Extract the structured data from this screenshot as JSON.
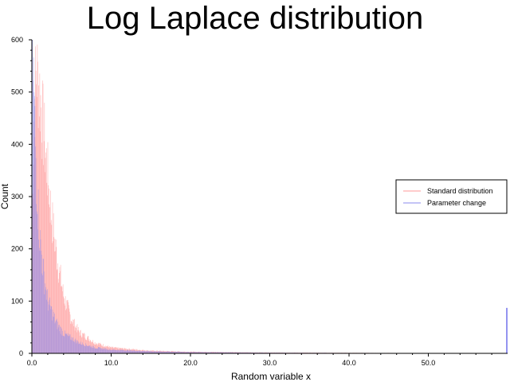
{
  "chart_data": {
    "type": "bar",
    "title": "Log Laplace distribution",
    "xlabel": "Random variable x",
    "ylabel": "Count",
    "xlim": [
      0,
      60
    ],
    "ylim": [
      0,
      600
    ],
    "grid": false,
    "legend_position": "right",
    "xticks": [
      "0.0",
      "10.0",
      "20.0",
      "30.0",
      "40.0",
      "50.0"
    ],
    "yticks": [
      "0",
      "100",
      "200",
      "300",
      "400",
      "500",
      "600"
    ],
    "bin_width": 0.06,
    "series": [
      {
        "name": "Standard distribution",
        "color": "#ff9a9a",
        "curve": [
          [
            0,
            220
          ],
          [
            0.3,
            480
          ],
          [
            0.6,
            540
          ],
          [
            1.0,
            500
          ],
          [
            1.5,
            420
          ],
          [
            2.0,
            340
          ],
          [
            2.5,
            260
          ],
          [
            3.0,
            200
          ],
          [
            4.0,
            110
          ],
          [
            5.0,
            65
          ],
          [
            6.0,
            40
          ],
          [
            8.0,
            20
          ],
          [
            10.0,
            11
          ],
          [
            15.0,
            5
          ],
          [
            20.0,
            3
          ],
          [
            30.0,
            1.5
          ],
          [
            40.0,
            1
          ],
          [
            50.0,
            0.5
          ],
          [
            59.9,
            0.3
          ]
        ],
        "tail_value": 0
      },
      {
        "name": "Parameter change",
        "color": "#8888ee",
        "curve": [
          [
            0,
            600
          ],
          [
            0.15,
            560
          ],
          [
            0.3,
            470
          ],
          [
            0.6,
            330
          ],
          [
            1.0,
            220
          ],
          [
            1.5,
            150
          ],
          [
            2.0,
            100
          ],
          [
            3.0,
            60
          ],
          [
            4.0,
            38
          ],
          [
            6.0,
            20
          ],
          [
            8.0,
            11
          ],
          [
            10.0,
            7
          ],
          [
            15.0,
            4
          ],
          [
            20.0,
            2.5
          ],
          [
            30.0,
            1.2
          ],
          [
            40.0,
            0.8
          ],
          [
            50.0,
            0.5
          ],
          [
            59.9,
            0.3
          ]
        ],
        "tail_value": 87
      }
    ]
  }
}
